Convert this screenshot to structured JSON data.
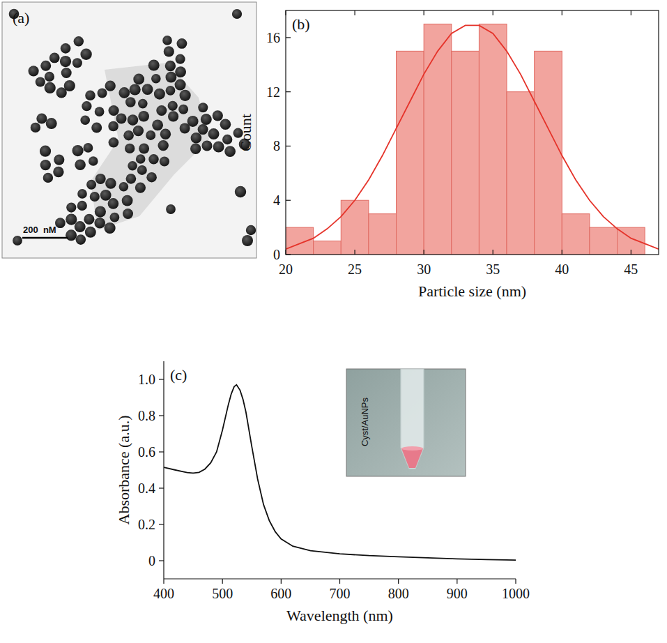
{
  "chart_data": [
    {
      "type": "image",
      "panel": "(a)",
      "annotations": [
        "200  nM"
      ]
    },
    {
      "type": "histogram",
      "panel": "(b)",
      "x_label": "Particle size (nm)",
      "y_label": "Count",
      "bins": [
        20,
        22,
        24,
        26,
        28,
        30,
        32,
        34,
        36,
        38,
        40,
        42,
        44,
        46
      ],
      "values": [
        2,
        1,
        4,
        3,
        15,
        17,
        15,
        17,
        12,
        15,
        3,
        2,
        2
      ],
      "color": "#f2a49e",
      "fit": {
        "type": "line",
        "color": "#e5332a",
        "x": [
          20,
          21,
          22,
          23,
          24,
          25,
          26,
          27,
          28,
          29,
          30,
          31,
          32,
          33,
          34,
          35,
          36,
          37,
          38,
          39,
          40,
          41,
          42,
          43,
          44,
          45,
          46,
          47
        ],
        "values": [
          0.4,
          0.8,
          1.2,
          1.9,
          2.8,
          4.0,
          5.5,
          7.3,
          9.3,
          11.3,
          13.3,
          15.0,
          16.3,
          16.9,
          16.9,
          16.3,
          15.0,
          13.3,
          11.3,
          9.3,
          7.3,
          5.5,
          4.0,
          2.8,
          1.9,
          1.2,
          0.8,
          0.4
        ]
      },
      "xlim": [
        20,
        47
      ],
      "xticks": [
        20,
        25,
        30,
        35,
        40,
        45
      ],
      "ylim": [
        0,
        18
      ],
      "yticks": [
        0,
        4,
        8,
        12,
        16
      ],
      "grid": false
    },
    {
      "type": "line",
      "panel": "(c)",
      "x_label": "Wavelength (nm)",
      "y_label": "Absorbance (a.u.)",
      "annotations": [
        "Cyst/AuNPs"
      ],
      "color": "#111111",
      "x": [
        400,
        420,
        440,
        450,
        460,
        470,
        480,
        490,
        500,
        510,
        515,
        520,
        524,
        530,
        535,
        540,
        550,
        560,
        570,
        580,
        590,
        600,
        620,
        650,
        700,
        750,
        800,
        850,
        900,
        950,
        1000
      ],
      "values": [
        0.515,
        0.5,
        0.486,
        0.483,
        0.487,
        0.505,
        0.54,
        0.6,
        0.72,
        0.86,
        0.92,
        0.96,
        0.97,
        0.94,
        0.89,
        0.82,
        0.63,
        0.45,
        0.31,
        0.22,
        0.16,
        0.12,
        0.08,
        0.055,
        0.038,
        0.028,
        0.022,
        0.016,
        0.01,
        0.006,
        0.003
      ],
      "xlim": [
        400,
        1000
      ],
      "xticks": [
        400,
        500,
        600,
        700,
        800,
        900,
        1000
      ],
      "ylim": [
        -0.1,
        1.1
      ],
      "yticks": [
        0,
        0.2,
        0.4,
        0.6,
        0.8,
        {
          "value": 1,
          "label": "1.0"
        }
      ],
      "grid": false
    }
  ]
}
